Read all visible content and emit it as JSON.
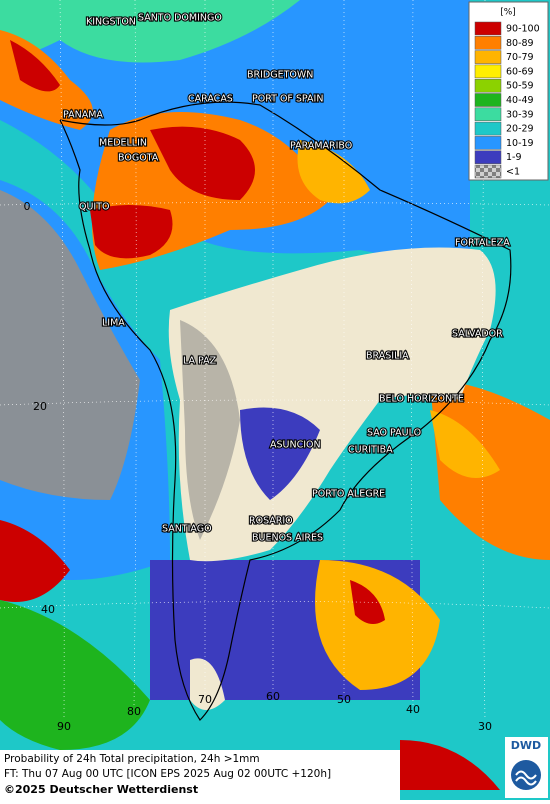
{
  "legend": {
    "title": "[%]",
    "items": [
      {
        "label": "90-100",
        "color": "#cc0000"
      },
      {
        "label": "80-89",
        "color": "#ff7f00"
      },
      {
        "label": "70-79",
        "color": "#ffb400"
      },
      {
        "label": "60-69",
        "color": "#ffee00"
      },
      {
        "label": "50-59",
        "color": "#8cd200"
      },
      {
        "label": "40-49",
        "color": "#1eb41e"
      },
      {
        "label": "30-39",
        "color": "#3cdca0"
      },
      {
        "label": "20-29",
        "color": "#1ec8c8"
      },
      {
        "label": "10-19",
        "color": "#2896ff"
      },
      {
        "label": "1-9",
        "color": "#3c3cbe"
      },
      {
        "label": "<1",
        "color": "#a0a0a0"
      }
    ]
  },
  "cities": [
    "KINGSTON",
    "SANTO DOMINGO",
    "BRIDGETOWN",
    "CARACAS",
    "PORT OF SPAIN",
    "PANAMA",
    "MEDELLIN",
    "BOGOTA",
    "PARAMARIBO",
    "QUITO",
    "FORTALEZA",
    "LIMA",
    "SALVADOR",
    "BRASILIA",
    "LA PAZ",
    "BELO HORIZONTE",
    "SAO PAULO",
    "ASUNCION",
    "CURITIBA",
    "PORTO ALEGRE",
    "ROSARIO",
    "SANTIAGO",
    "BUENOS AIRES"
  ],
  "grid_labels": [
    "0",
    "20",
    "40",
    "90",
    "80",
    "70",
    "60",
    "50",
    "40",
    "30"
  ],
  "caption": {
    "line1": "Probability of 24h Total precipitation, 24h >1mm",
    "line2": "FT: Thu 07 Aug 00 UTC [ICON EPS 2025 Aug 02 00UTC +120h]",
    "copyright": "©2025 Deutscher Wetterdienst"
  },
  "logo": "DWD"
}
